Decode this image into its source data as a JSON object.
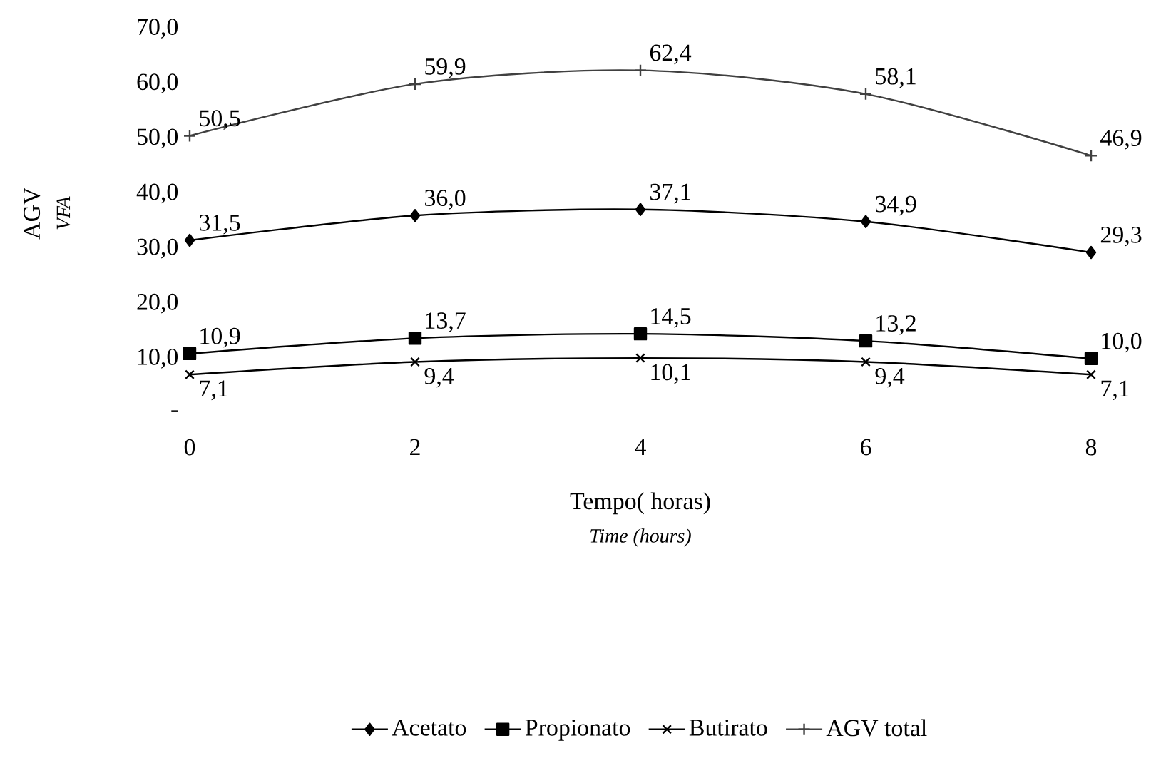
{
  "chart_data": {
    "type": "line",
    "xlabel": "Tempo( horas)",
    "ylabel": "AGV",
    "annotations": [
      "Time (hours)",
      "VFA"
    ],
    "x": [
      0,
      2,
      4,
      6,
      8
    ],
    "xlim": [
      0,
      8
    ],
    "xticks": [
      0,
      2,
      4,
      6,
      8
    ],
    "ylim": [
      0,
      70
    ],
    "yticks": [
      {
        "value": 0,
        "label": "-"
      },
      {
        "value": 10,
        "label": "10,0"
      },
      {
        "value": 20,
        "label": "20,0"
      },
      {
        "value": 30,
        "label": "30,0"
      },
      {
        "value": 40,
        "label": "40,0"
      },
      {
        "value": 50,
        "label": "50,0"
      },
      {
        "value": 60,
        "label": "60,0"
      },
      {
        "value": 70,
        "label": "70,0"
      }
    ],
    "legend": "bottom",
    "grid": false,
    "series": [
      {
        "name": "Acetato",
        "color": "#000000",
        "marker": "diamond",
        "values": [
          31.5,
          36.0,
          37.1,
          34.9,
          29.3
        ],
        "value_labels": [
          "31,5",
          "36,0",
          "37,1",
          "34,9",
          "29,3"
        ]
      },
      {
        "name": "Propionato",
        "color": "#000000",
        "marker": "square",
        "values": [
          10.9,
          13.7,
          14.5,
          13.2,
          10.0
        ],
        "value_labels": [
          "10,9",
          "13,7",
          "14,5",
          "13,2",
          "10,0"
        ]
      },
      {
        "name": "Butirato",
        "color": "#000000",
        "marker": "cross",
        "values": [
          7.1,
          9.4,
          10.1,
          9.4,
          7.1
        ],
        "value_labels": [
          "7,1",
          "9,4",
          "10,1",
          "9,4",
          "7,1"
        ]
      },
      {
        "name": "AGV total",
        "color": "#404040",
        "marker": "plus",
        "values": [
          50.5,
          59.9,
          62.4,
          58.1,
          46.9
        ],
        "value_labels": [
          "50,5",
          "59,9",
          "62,4",
          "58,1",
          "46,9"
        ]
      }
    ]
  }
}
